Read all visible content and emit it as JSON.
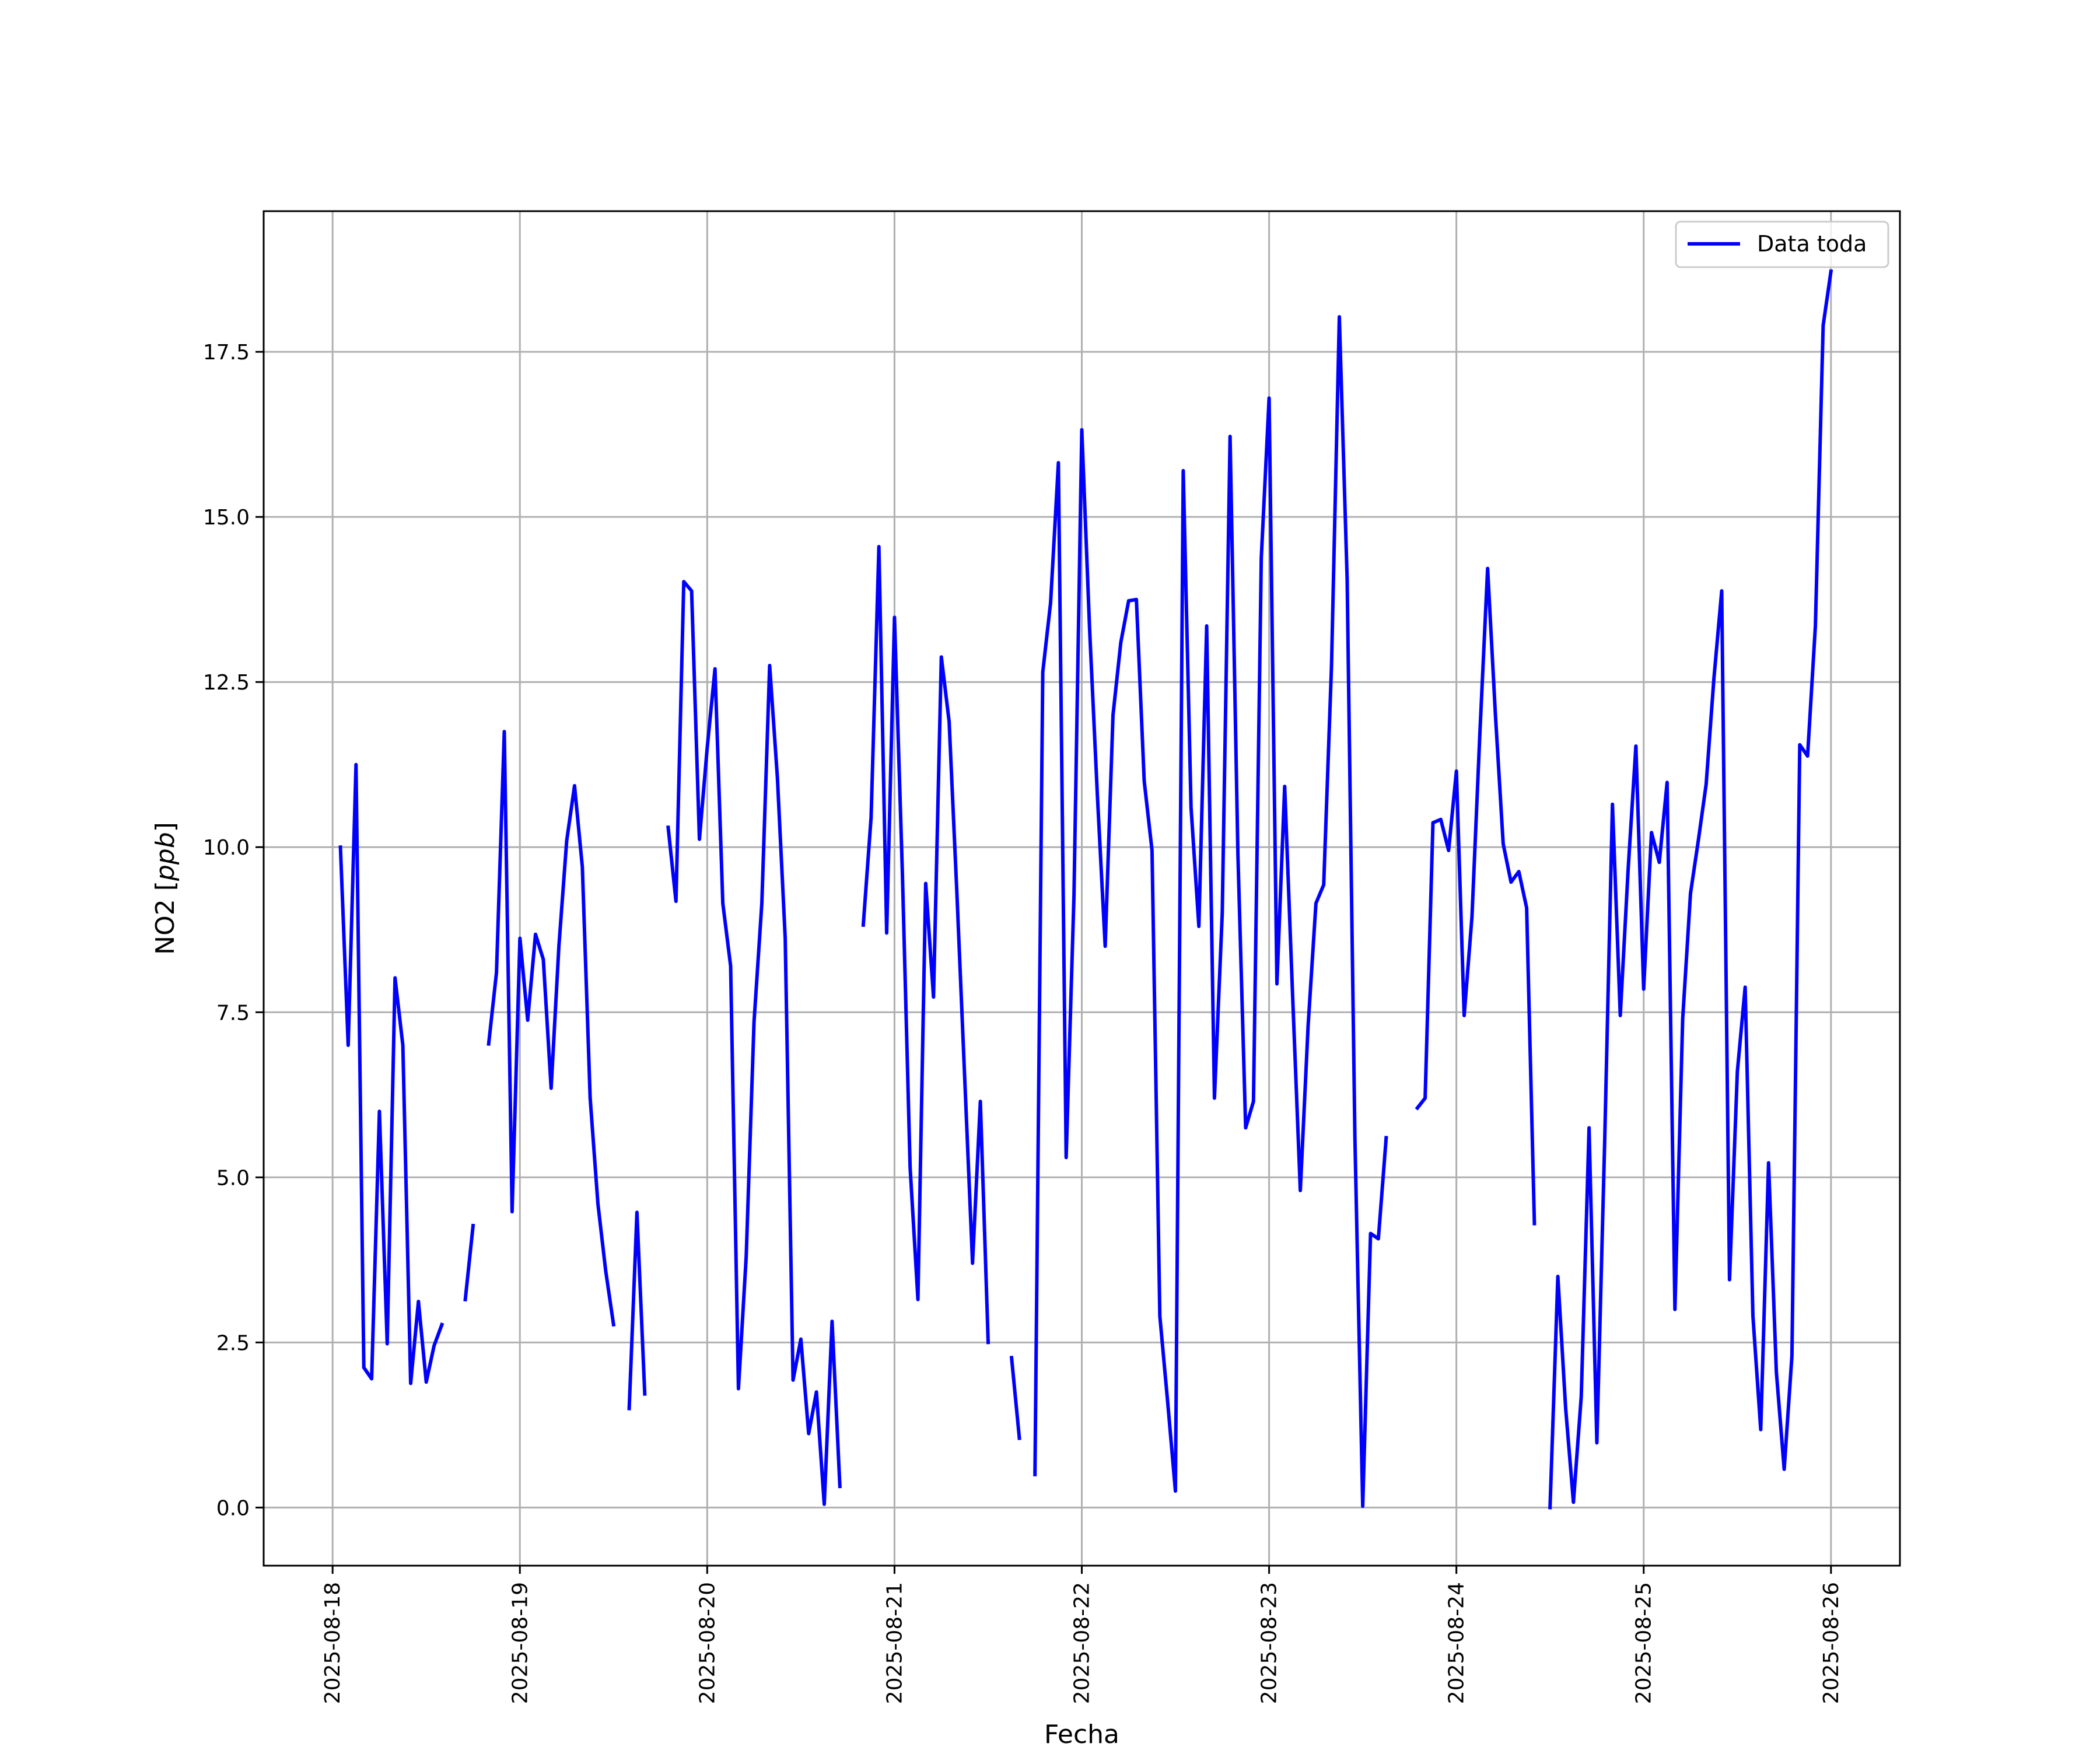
{
  "chart_data": {
    "type": "line",
    "xlabel": "Fecha",
    "ylabel": "NO2 [ppb]",
    "ylabel_parts": {
      "prefix": "NO2 [",
      "unit": "ppb",
      "suffix": "]"
    },
    "ylim": [
      -0.88,
      19.63
    ],
    "xlim": [
      "2025-08-17T15:10",
      "2025-08-26T08:50"
    ],
    "x_ticks": [
      "2025-08-18",
      "2025-08-19",
      "2025-08-20",
      "2025-08-21",
      "2025-08-22",
      "2025-08-23",
      "2025-08-24",
      "2025-08-25",
      "2025-08-26"
    ],
    "y_ticks": [
      0.0,
      2.5,
      5.0,
      7.5,
      10.0,
      12.5,
      15.0,
      17.5
    ],
    "y_tick_labels": [
      "0.0",
      "2.5",
      "5.0",
      "7.5",
      "10.0",
      "12.5",
      "15.0",
      "17.5"
    ],
    "grid": true,
    "legend_position": "top-right",
    "series": [
      {
        "name": "Data toda",
        "color": "#0000ff",
        "segments": [
          {
            "start": "2025-08-18T01:00",
            "values": [
              10.0,
              7.0,
              11.25,
              2.12,
              1.95,
              6.0,
              2.48,
              8.02,
              7.0,
              1.88,
              3.12,
              1.9,
              2.45,
              2.77
            ]
          },
          {
            "start": "2025-08-18T17:00",
            "values": [
              3.15,
              4.27
            ]
          },
          {
            "start": "2025-08-18T20:00",
            "values": [
              7.02,
              8.1,
              11.75,
              4.48,
              8.62,
              7.38,
              8.68,
              8.3,
              6.35,
              8.5,
              10.1,
              10.93,
              9.7,
              6.2,
              4.6,
              3.58,
              2.77
            ]
          },
          {
            "start": "2025-08-19T14:00",
            "values": [
              1.5,
              4.47,
              1.72
            ]
          },
          {
            "start": "2025-08-19T19:00",
            "values": [
              10.3,
              9.18,
              14.02,
              13.88,
              10.12,
              11.5,
              12.7,
              9.15,
              8.2,
              1.8,
              3.8,
              7.35,
              9.15,
              12.75,
              11.05,
              8.62,
              1.93,
              2.55,
              1.12,
              1.75,
              0.05,
              2.82,
              0.32
            ]
          },
          {
            "start": "2025-08-20T20:00",
            "values": [
              8.82,
              10.45,
              14.55,
              8.7,
              13.48,
              9.65,
              5.15,
              3.15,
              9.45,
              7.73,
              12.88,
              11.9,
              9.3,
              6.5,
              3.7,
              6.15,
              2.5
            ]
          },
          {
            "start": "2025-08-21T15:00",
            "values": [
              2.27,
              1.05
            ]
          },
          {
            "start": "2025-08-21T18:00",
            "values": [
              0.5,
              12.65,
              13.7,
              15.82,
              5.3,
              9.27,
              16.32,
              13.3,
              10.77,
              8.5,
              12.0,
              13.1,
              13.73,
              13.75,
              11.0,
              9.95,
              2.9,
              1.6,
              0.25,
              15.7,
              10.6,
              8.8,
              13.35,
              6.2,
              9.0,
              16.22,
              9.9,
              5.75,
              6.15,
              14.38,
              16.8,
              7.93,
              10.92,
              7.8,
              4.8,
              7.3,
              9.15,
              9.43,
              12.75,
              18.03,
              14.05,
              5.6,
              0.02,
              4.15,
              4.07,
              5.6
            ]
          },
          {
            "start": "2025-08-23T19:00",
            "values": [
              6.05,
              6.2,
              10.37,
              10.42,
              9.95,
              11.15,
              7.45,
              8.95,
              11.7,
              14.22,
              12.0,
              10.05,
              9.47,
              9.63,
              9.08,
              4.3
            ]
          },
          {
            "start": "2025-08-24T12:00",
            "values": [
              0.0,
              3.5,
              1.5,
              0.08,
              1.68,
              5.75,
              0.98,
              5.55,
              10.65,
              7.45,
              9.65,
              11.53,
              7.85,
              10.22,
              9.77,
              10.98,
              3.0,
              7.4,
              9.3,
              10.1,
              10.95,
              12.55,
              13.88,
              3.45,
              6.6,
              7.88,
              2.9,
              1.18,
              5.22,
              2.05,
              0.58,
              2.3,
              11.55,
              11.38,
              13.35,
              17.9,
              18.72
            ]
          }
        ]
      }
    ]
  }
}
